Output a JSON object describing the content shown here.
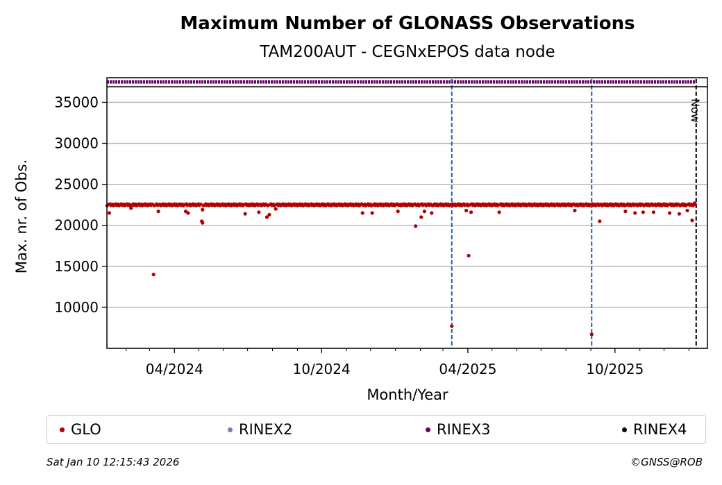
{
  "title": "Maximum Number of GLONASS Observations",
  "subtitle": "TAM200AUT - CEGNxEPOS data node",
  "footer": {
    "timestamp": "Sat Jan 10 12:15:43 2026",
    "copyright": "©GNSS@ROB"
  },
  "chart_data": {
    "type": "scatter",
    "xlabel": "Month/Year",
    "ylabel": "Max. nr. of Obs.",
    "x_tick_labels": [
      "04/2024",
      "10/2024",
      "04/2025",
      "10/2025"
    ],
    "x_ticks": [
      "2024-04-01",
      "2024-10-01",
      "2025-04-01",
      "2025-10-01"
    ],
    "y_ticks": [
      10000,
      15000,
      20000,
      25000,
      30000,
      35000
    ],
    "xlim": [
      "2024-01-08",
      "2026-01-24"
    ],
    "ylim": [
      5000,
      38000
    ],
    "grid": "horizontal",
    "now_label": "Now",
    "now_date": "2026-01-10",
    "event_lines": [
      "2025-03-12",
      "2025-09-02"
    ],
    "colors": {
      "GLO": "#b00000",
      "RINEX2": "#7b7bbf",
      "RINEX3": "#6b006b",
      "RINEX4": "#1a0010",
      "event_line": "#1f5fb0"
    },
    "series": [
      {
        "name": "GLO",
        "baseline": 22500,
        "range": [
          "2024-01-08",
          "2026-01-09"
        ],
        "points": [
          [
            "2024-01-11",
            21500
          ],
          [
            "2024-02-07",
            22100
          ],
          [
            "2024-03-06",
            14000
          ],
          [
            "2024-03-12",
            21700
          ],
          [
            "2024-04-15",
            21700
          ],
          [
            "2024-04-18",
            21500
          ],
          [
            "2024-05-05",
            20500
          ],
          [
            "2024-05-06",
            20300
          ],
          [
            "2024-05-06",
            21900
          ],
          [
            "2024-06-28",
            21400
          ],
          [
            "2024-07-15",
            21600
          ],
          [
            "2024-07-25",
            21000
          ],
          [
            "2024-07-28",
            21300
          ],
          [
            "2024-08-05",
            22000
          ],
          [
            "2024-11-21",
            21500
          ],
          [
            "2024-12-03",
            21500
          ],
          [
            "2025-01-04",
            21700
          ],
          [
            "2025-01-26",
            19900
          ],
          [
            "2025-02-02",
            21000
          ],
          [
            "2025-02-06",
            21700
          ],
          [
            "2025-02-15",
            21500
          ],
          [
            "2025-03-12",
            7700
          ],
          [
            "2025-03-30",
            21800
          ],
          [
            "2025-04-02",
            16300
          ],
          [
            "2025-04-05",
            21600
          ],
          [
            "2025-05-10",
            21600
          ],
          [
            "2025-08-12",
            21800
          ],
          [
            "2025-09-02",
            6700
          ],
          [
            "2025-09-12",
            20500
          ],
          [
            "2025-10-14",
            21700
          ],
          [
            "2025-10-26",
            21500
          ],
          [
            "2025-11-05",
            21600
          ],
          [
            "2025-11-18",
            21600
          ],
          [
            "2025-12-08",
            21500
          ],
          [
            "2025-12-20",
            21400
          ],
          [
            "2025-12-30",
            21800
          ],
          [
            "2026-01-05",
            20600
          ],
          [
            "2026-01-08",
            22700
          ]
        ]
      },
      {
        "name": "RINEX2",
        "values": []
      },
      {
        "name": "RINEX3",
        "band": [
          "2024-01-08",
          "2026-01-09"
        ]
      },
      {
        "name": "RINEX4",
        "values": []
      }
    ]
  },
  "legend": [
    {
      "name": "GLO",
      "color": "#b00000"
    },
    {
      "name": "RINEX2",
      "color": "#7b7bbf"
    },
    {
      "name": "RINEX3",
      "color": "#6b006b"
    },
    {
      "name": "RINEX4",
      "color": "#1a0010"
    }
  ]
}
